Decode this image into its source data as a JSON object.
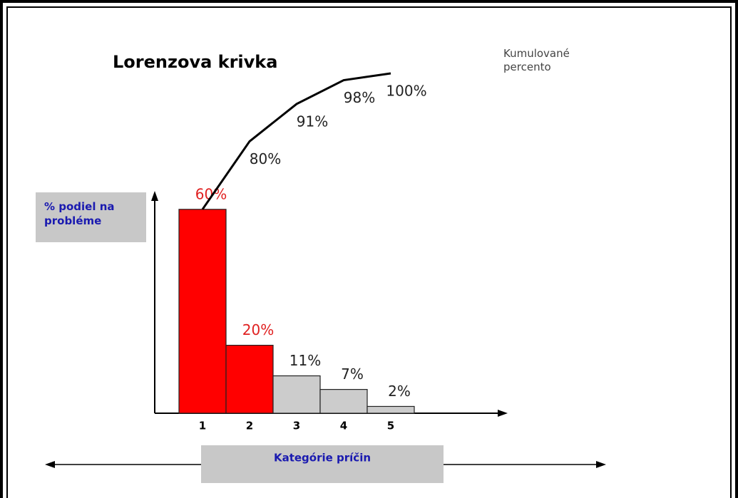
{
  "chart_data": {
    "type": "pareto",
    "title": "Lorenzova krivka",
    "y_label": "% podiel na probléme",
    "x_label": "Kategórie príčin",
    "annotation": "Kumulované percento",
    "categories": [
      "1",
      "2",
      "3",
      "4",
      "5"
    ],
    "ylim": [
      0,
      100
    ],
    "series": [
      {
        "name": "podiel",
        "values": [
          60,
          20,
          11,
          7,
          2
        ],
        "value_labels": [
          "60%",
          "20%",
          "11%",
          "7%",
          "2%"
        ],
        "colors": [
          "#ff0000",
          "#ff0000",
          "#cccccc",
          "#cccccc",
          "#cccccc"
        ],
        "label_colors": [
          "#e02020",
          "#e02020",
          "#222222",
          "#222222",
          "#222222"
        ]
      },
      {
        "name": "kumulované",
        "values": [
          60,
          80,
          91,
          98,
          100
        ],
        "value_labels": [
          "60%",
          "80%",
          "91%",
          "98%",
          "100%"
        ],
        "color": "#000000"
      }
    ]
  }
}
